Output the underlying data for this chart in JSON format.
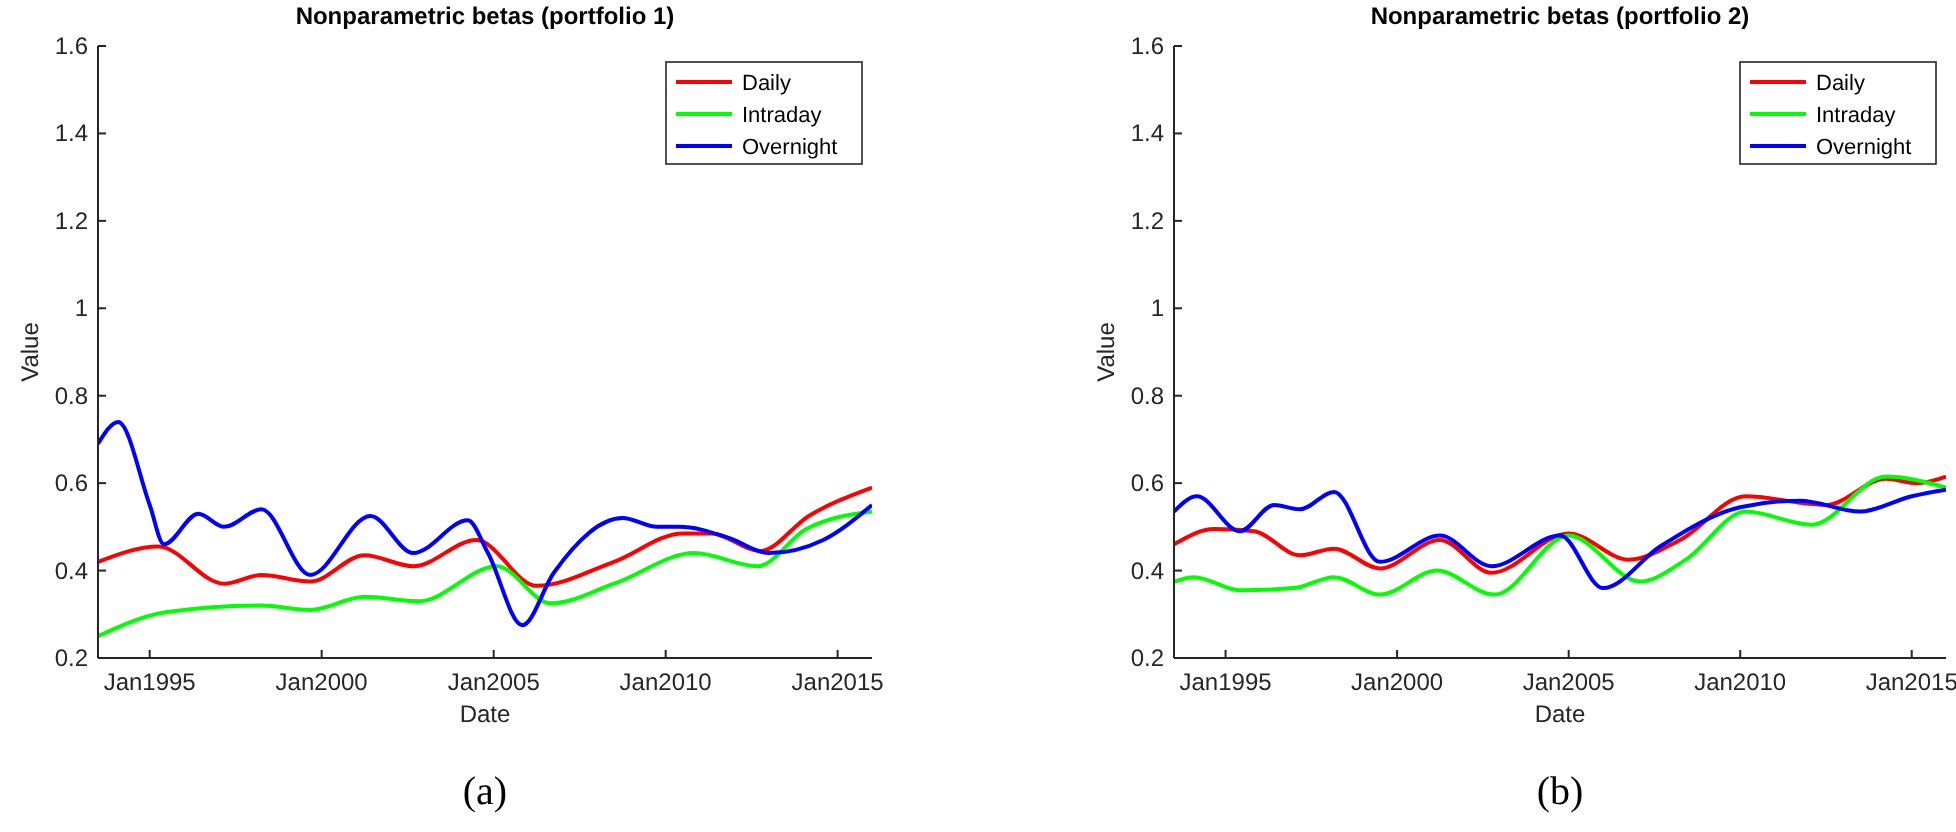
{
  "chart_data": [
    {
      "type": "line",
      "title": "Nonparametric betas (portfolio 1)",
      "xlabel": "Date",
      "ylabel": "Value",
      "annotations": [
        "(a)"
      ],
      "xlim": [
        "1993-07",
        "2016-01"
      ],
      "xticks": [
        {
          "value": "1995-01",
          "label": "Jan1995"
        },
        {
          "value": "2000-01",
          "label": "Jan2000"
        },
        {
          "value": "2005-01",
          "label": "Jan2005"
        },
        {
          "value": "2010-01",
          "label": "Jan2010"
        },
        {
          "value": "2015-01",
          "label": "Jan2015"
        }
      ],
      "ylim": [
        0.2,
        1.6
      ],
      "yticks": [
        0.2,
        0.4,
        0.6,
        0.8,
        1,
        1.2,
        1.4,
        1.6
      ],
      "legend": "top right",
      "grid": false,
      "line_style": "solid",
      "series": [
        {
          "name": "Daily",
          "color": "#ff0000",
          "x": [
            "1993-07",
            "1995-04",
            "1997-03",
            "1998-04",
            "1999-09",
            "2001-04",
            "2002-09",
            "2004-07",
            "2006-04",
            "2008-07",
            "2010-07",
            "2011-05",
            "2012-10",
            "2014-03",
            "2016-01"
          ],
          "values": [
            0.42,
            0.455,
            0.37,
            0.39,
            0.375,
            0.435,
            0.41,
            0.47,
            0.365,
            0.42,
            0.485,
            0.485,
            0.445,
            0.525,
            0.59
          ]
        },
        {
          "name": "Intraday",
          "color": "#00ff00",
          "x": [
            "1993-07",
            "1995-07",
            "1998-04",
            "1999-09",
            "2001-04",
            "2002-11",
            "2005-02",
            "2006-09",
            "2008-07",
            "2010-11",
            "2012-09",
            "2014-02",
            "2016-01"
          ],
          "values": [
            0.25,
            0.305,
            0.32,
            0.31,
            0.34,
            0.33,
            0.41,
            0.325,
            0.37,
            0.44,
            0.41,
            0.495,
            0.535
          ]
        },
        {
          "name": "Overnight",
          "color": "#0000ff",
          "x": [
            "1993-07",
            "1994-02",
            "1995-01",
            "1995-06",
            "1996-06",
            "1997-03",
            "1998-04",
            "1999-09",
            "2001-06",
            "2002-09",
            "2004-04",
            "2004-11",
            "2005-11",
            "2006-10",
            "2008-10",
            "2009-10",
            "2010-06",
            "2011-11",
            "2013-01",
            "2014-08",
            "2016-01"
          ],
          "values": [
            0.69,
            0.74,
            0.55,
            0.46,
            0.53,
            0.5,
            0.54,
            0.39,
            0.525,
            0.44,
            0.515,
            0.44,
            0.275,
            0.395,
            0.52,
            0.5,
            0.5,
            0.475,
            0.44,
            0.47,
            0.55
          ]
        }
      ]
    },
    {
      "type": "line",
      "title": "Nonparametric betas (portfolio 2)",
      "xlabel": "Date",
      "ylabel": "Value",
      "annotations": [
        "(b)"
      ],
      "xlim": [
        "1993-07",
        "2016-01"
      ],
      "xticks": [
        {
          "value": "1995-01",
          "label": "Jan1995"
        },
        {
          "value": "2000-01",
          "label": "Jan2000"
        },
        {
          "value": "2005-01",
          "label": "Jan2005"
        },
        {
          "value": "2010-01",
          "label": "Jan2010"
        },
        {
          "value": "2015-01",
          "label": "Jan2015"
        }
      ],
      "ylim": [
        0.2,
        1.6
      ],
      "yticks": [
        0.2,
        0.4,
        0.6,
        0.8,
        1,
        1.2,
        1.4,
        1.6
      ],
      "legend": "top right",
      "grid": false,
      "line_style": "solid",
      "series": [
        {
          "name": "Daily",
          "color": "#ff0000",
          "x": [
            "1993-07",
            "1994-09",
            "1995-11",
            "1997-03",
            "1998-03",
            "1999-07",
            "2001-04",
            "2002-10",
            "2005-01",
            "2006-10",
            "2008-04",
            "2010-03",
            "2012-07",
            "2014-04",
            "2015-03",
            "2016-01"
          ],
          "values": [
            0.46,
            0.495,
            0.49,
            0.435,
            0.45,
            0.405,
            0.47,
            0.395,
            0.485,
            0.425,
            0.47,
            0.57,
            0.55,
            0.61,
            0.6,
            0.615
          ]
        },
        {
          "name": "Intraday",
          "color": "#00ff00",
          "x": [
            "1993-07",
            "1994-02",
            "1995-06",
            "1997-01",
            "1998-03",
            "1999-07",
            "2001-03",
            "2002-11",
            "2005-01",
            "2007-02",
            "2008-06",
            "2010-03",
            "2012-02",
            "2014-04",
            "2016-01"
          ],
          "values": [
            0.375,
            0.385,
            0.355,
            0.36,
            0.385,
            0.345,
            0.4,
            0.345,
            0.48,
            0.375,
            0.425,
            0.535,
            0.505,
            0.615,
            0.59
          ]
        },
        {
          "name": "Overnight",
          "color": "#0000ff",
          "x": [
            "1993-07",
            "1994-03",
            "1995-06",
            "1996-06",
            "1997-03",
            "1998-03",
            "1999-07",
            "2001-04",
            "2002-10",
            "2004-10",
            "2006-01",
            "2007-09",
            "2010-01",
            "2011-10",
            "2013-07",
            "2015-01",
            "2016-01"
          ],
          "values": [
            0.535,
            0.57,
            0.49,
            0.55,
            0.54,
            0.58,
            0.42,
            0.48,
            0.41,
            0.48,
            0.36,
            0.455,
            0.545,
            0.56,
            0.535,
            0.57,
            0.585
          ]
        }
      ]
    }
  ]
}
